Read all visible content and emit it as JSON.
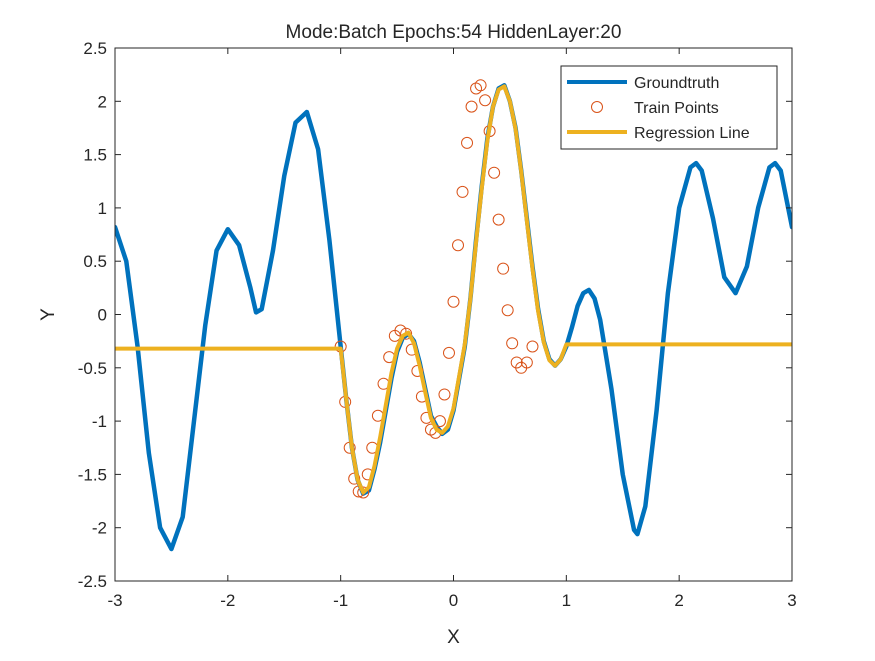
{
  "chart_data": {
    "type": "line",
    "title": "Mode:Batch Epochs:54 HiddenLayer:20",
    "xlabel": "X",
    "ylabel": "Y",
    "xlim": [
      -3,
      3
    ],
    "ylim": [
      -2.5,
      2.5
    ],
    "xticks": [
      -3,
      -2,
      -1,
      0,
      1,
      2,
      3
    ],
    "yticks": [
      -2.5,
      -2,
      -1.5,
      -1,
      -0.5,
      0,
      0.5,
      1,
      1.5,
      2,
      2.5
    ],
    "xtick_labels": [
      "-3",
      "-2",
      "-1",
      "0",
      "1",
      "2",
      "3"
    ],
    "ytick_labels": [
      "-2.5",
      "-2",
      "-1.5",
      "-1",
      "-0.5",
      "0",
      "0.5",
      "1",
      "1.5",
      "2",
      "2.5"
    ],
    "grid": false,
    "legend_location": "top-right",
    "series": [
      {
        "name": "Groundtruth",
        "style": "line",
        "color": "#0072BD",
        "points": [
          [
            -3.0,
            0.82
          ],
          [
            -2.9,
            0.5
          ],
          [
            -2.8,
            -0.3
          ],
          [
            -2.7,
            -1.3
          ],
          [
            -2.6,
            -2.0
          ],
          [
            -2.5,
            -2.2
          ],
          [
            -2.4,
            -1.9
          ],
          [
            -2.3,
            -1.0
          ],
          [
            -2.2,
            -0.1
          ],
          [
            -2.1,
            0.6
          ],
          [
            -2.0,
            0.8
          ],
          [
            -1.9,
            0.65
          ],
          [
            -1.8,
            0.25
          ],
          [
            -1.75,
            0.02
          ],
          [
            -1.7,
            0.05
          ],
          [
            -1.6,
            0.6
          ],
          [
            -1.5,
            1.3
          ],
          [
            -1.4,
            1.8
          ],
          [
            -1.3,
            1.9
          ],
          [
            -1.2,
            1.55
          ],
          [
            -1.1,
            0.7
          ],
          [
            -1.0,
            -0.3
          ],
          [
            -0.95,
            -0.8
          ],
          [
            -0.9,
            -1.25
          ],
          [
            -0.85,
            -1.55
          ],
          [
            -0.8,
            -1.68
          ],
          [
            -0.75,
            -1.65
          ],
          [
            -0.7,
            -1.45
          ],
          [
            -0.65,
            -1.2
          ],
          [
            -0.6,
            -0.9
          ],
          [
            -0.55,
            -0.6
          ],
          [
            -0.5,
            -0.35
          ],
          [
            -0.45,
            -0.22
          ],
          [
            -0.4,
            -0.18
          ],
          [
            -0.35,
            -0.25
          ],
          [
            -0.3,
            -0.45
          ],
          [
            -0.25,
            -0.7
          ],
          [
            -0.2,
            -0.95
          ],
          [
            -0.15,
            -1.05
          ],
          [
            -0.1,
            -1.12
          ],
          [
            -0.05,
            -1.08
          ],
          [
            0.0,
            -0.9
          ],
          [
            0.05,
            -0.6
          ],
          [
            0.1,
            -0.3
          ],
          [
            0.15,
            0.15
          ],
          [
            0.2,
            0.7
          ],
          [
            0.25,
            1.2
          ],
          [
            0.3,
            1.65
          ],
          [
            0.35,
            1.95
          ],
          [
            0.4,
            2.12
          ],
          [
            0.45,
            2.15
          ],
          [
            0.5,
            2.0
          ],
          [
            0.55,
            1.75
          ],
          [
            0.6,
            1.35
          ],
          [
            0.65,
            0.9
          ],
          [
            0.7,
            0.45
          ],
          [
            0.75,
            0.05
          ],
          [
            0.8,
            -0.25
          ],
          [
            0.85,
            -0.42
          ],
          [
            0.9,
            -0.48
          ],
          [
            0.95,
            -0.42
          ],
          [
            1.0,
            -0.3
          ],
          [
            1.05,
            -0.12
          ],
          [
            1.1,
            0.08
          ],
          [
            1.15,
            0.2
          ],
          [
            1.2,
            0.23
          ],
          [
            1.25,
            0.15
          ],
          [
            1.3,
            -0.05
          ],
          [
            1.4,
            -0.7
          ],
          [
            1.5,
            -1.5
          ],
          [
            1.6,
            -2.02
          ],
          [
            1.63,
            -2.06
          ],
          [
            1.7,
            -1.8
          ],
          [
            1.8,
            -0.9
          ],
          [
            1.9,
            0.2
          ],
          [
            2.0,
            1.0
          ],
          [
            2.1,
            1.38
          ],
          [
            2.15,
            1.42
          ],
          [
            2.2,
            1.35
          ],
          [
            2.3,
            0.9
          ],
          [
            2.4,
            0.35
          ],
          [
            2.5,
            0.2
          ],
          [
            2.6,
            0.45
          ],
          [
            2.7,
            1.0
          ],
          [
            2.8,
            1.38
          ],
          [
            2.85,
            1.42
          ],
          [
            2.9,
            1.35
          ],
          [
            3.0,
            0.82
          ]
        ]
      },
      {
        "name": "Train Points",
        "style": "markers",
        "color": "#D95319",
        "points": [
          [
            -1.0,
            -0.3
          ],
          [
            -0.96,
            -0.82
          ],
          [
            -0.92,
            -1.25
          ],
          [
            -0.88,
            -1.54
          ],
          [
            -0.84,
            -1.66
          ],
          [
            -0.8,
            -1.67
          ],
          [
            -0.76,
            -1.5
          ],
          [
            -0.72,
            -1.25
          ],
          [
            -0.67,
            -0.95
          ],
          [
            -0.62,
            -0.65
          ],
          [
            -0.57,
            -0.4
          ],
          [
            -0.52,
            -0.2
          ],
          [
            -0.47,
            -0.15
          ],
          [
            -0.42,
            -0.18
          ],
          [
            -0.37,
            -0.33
          ],
          [
            -0.32,
            -0.53
          ],
          [
            -0.28,
            -0.77
          ],
          [
            -0.24,
            -0.97
          ],
          [
            -0.2,
            -1.08
          ],
          [
            -0.16,
            -1.11
          ],
          [
            -0.12,
            -1.0
          ],
          [
            -0.08,
            -0.75
          ],
          [
            -0.04,
            -0.36
          ],
          [
            0.0,
            0.12
          ],
          [
            0.04,
            0.65
          ],
          [
            0.08,
            1.15
          ],
          [
            0.12,
            1.61
          ],
          [
            0.16,
            1.95
          ],
          [
            0.2,
            2.12
          ],
          [
            0.24,
            2.15
          ],
          [
            0.28,
            2.01
          ],
          [
            0.32,
            1.72
          ],
          [
            0.36,
            1.33
          ],
          [
            0.4,
            0.89
          ],
          [
            0.44,
            0.43
          ],
          [
            0.48,
            0.04
          ],
          [
            0.52,
            -0.27
          ],
          [
            0.56,
            -0.45
          ],
          [
            0.6,
            -0.5
          ],
          [
            0.65,
            -0.45
          ],
          [
            0.7,
            -0.3
          ]
        ]
      },
      {
        "name": "Regression Line",
        "style": "line",
        "color": "#EDB120",
        "points": [
          [
            -3.0,
            -0.32
          ],
          [
            -1.0,
            -0.32
          ],
          [
            -0.95,
            -0.8
          ],
          [
            -0.9,
            -1.25
          ],
          [
            -0.85,
            -1.55
          ],
          [
            -0.8,
            -1.67
          ],
          [
            -0.75,
            -1.62
          ],
          [
            -0.7,
            -1.42
          ],
          [
            -0.65,
            -1.15
          ],
          [
            -0.6,
            -0.85
          ],
          [
            -0.55,
            -0.55
          ],
          [
            -0.5,
            -0.32
          ],
          [
            -0.45,
            -0.2
          ],
          [
            -0.4,
            -0.17
          ],
          [
            -0.35,
            -0.27
          ],
          [
            -0.3,
            -0.48
          ],
          [
            -0.25,
            -0.73
          ],
          [
            -0.2,
            -0.97
          ],
          [
            -0.15,
            -1.08
          ],
          [
            -0.1,
            -1.11
          ],
          [
            -0.05,
            -1.05
          ],
          [
            0.0,
            -0.88
          ],
          [
            0.05,
            -0.58
          ],
          [
            0.1,
            -0.28
          ],
          [
            0.15,
            0.15
          ],
          [
            0.2,
            0.68
          ],
          [
            0.25,
            1.18
          ],
          [
            0.3,
            1.63
          ],
          [
            0.35,
            1.95
          ],
          [
            0.4,
            2.11
          ],
          [
            0.45,
            2.14
          ],
          [
            0.5,
            2.0
          ],
          [
            0.55,
            1.74
          ],
          [
            0.6,
            1.34
          ],
          [
            0.65,
            0.88
          ],
          [
            0.7,
            0.43
          ],
          [
            0.75,
            0.03
          ],
          [
            0.8,
            -0.26
          ],
          [
            0.85,
            -0.43
          ],
          [
            0.9,
            -0.48
          ],
          [
            0.95,
            -0.42
          ],
          [
            1.0,
            -0.28
          ],
          [
            3.0,
            -0.28
          ]
        ]
      }
    ]
  }
}
